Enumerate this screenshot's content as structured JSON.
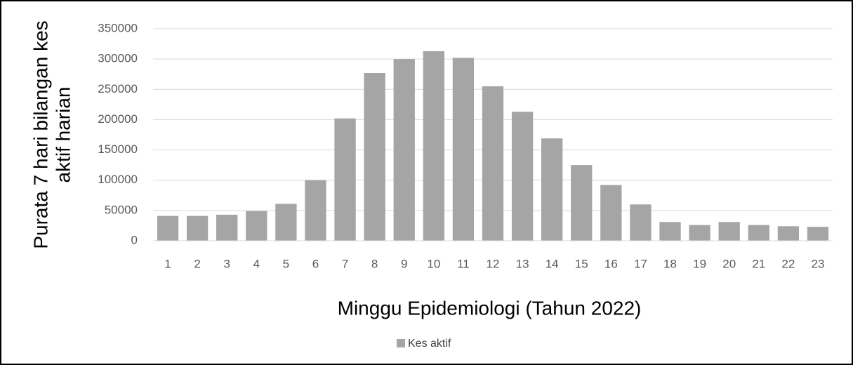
{
  "chart_data": {
    "type": "bar",
    "y_label": [
      "Purata 7 hari bilangan kes",
      "aktif harian"
    ],
    "x_label": "Minggu Epidemiologi (Tahun 2022)",
    "categories": [
      "1",
      "2",
      "3",
      "4",
      "5",
      "6",
      "7",
      "8",
      "9",
      "10",
      "11",
      "12",
      "13",
      "14",
      "15",
      "16",
      "17",
      "18",
      "19",
      "20",
      "21",
      "22",
      "23"
    ],
    "series": [
      {
        "name": "Kes aktif",
        "color": "#a5a5a5",
        "values": [
          41000,
          41000,
          43000,
          49000,
          61000,
          100000,
          202000,
          277000,
          300000,
          313000,
          302000,
          255000,
          213000,
          169000,
          125000,
          92000,
          60000,
          31000,
          26000,
          31000,
          26000,
          24000,
          23000
        ]
      }
    ],
    "ylim": [
      0,
      350000
    ],
    "yticks": [
      0,
      50000,
      100000,
      150000,
      200000,
      250000,
      300000,
      350000
    ],
    "grid": true
  }
}
